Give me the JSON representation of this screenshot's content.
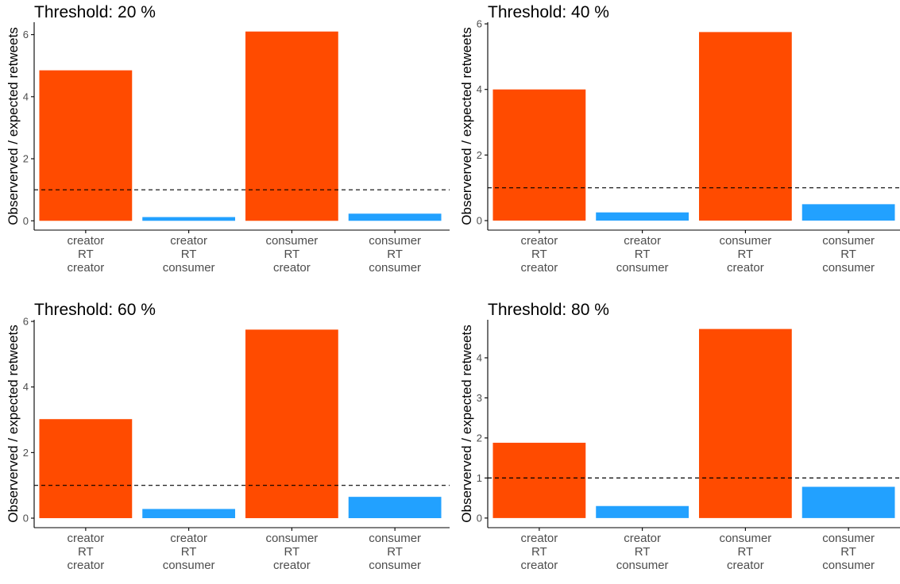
{
  "ylabel": "Observerved / expected retweets",
  "reference_line": 1,
  "colors": {
    "creator": "#ff4b00",
    "consumer": "#22a1ff"
  },
  "categories": [
    [
      "creator",
      "RT",
      "creator"
    ],
    [
      "creator",
      "RT",
      "consumer"
    ],
    [
      "consumer",
      "RT",
      "creator"
    ],
    [
      "consumer",
      "RT",
      "consumer"
    ]
  ],
  "chart_data": [
    {
      "type": "bar",
      "title": "Threshold: 20 %",
      "categories": [
        "creator RT creator",
        "creator RT consumer",
        "consumer RT creator",
        "consumer RT consumer"
      ],
      "values": [
        4.85,
        0.12,
        6.1,
        0.23
      ],
      "colors": [
        "#ff4b00",
        "#22a1ff",
        "#ff4b00",
        "#22a1ff"
      ],
      "ylim": [
        -0.3,
        6.4
      ],
      "yticks": [
        0,
        2,
        4,
        6
      ],
      "ylabel": "Observerved / expected retweets",
      "hline": 1
    },
    {
      "type": "bar",
      "title": "Threshold: 40 %",
      "categories": [
        "creator RT creator",
        "creator RT consumer",
        "consumer RT creator",
        "consumer RT consumer"
      ],
      "values": [
        4.0,
        0.25,
        5.75,
        0.5
      ],
      "colors": [
        "#ff4b00",
        "#22a1ff",
        "#ff4b00",
        "#22a1ff"
      ],
      "ylim": [
        -0.29,
        6.05
      ],
      "yticks": [
        0,
        2,
        4,
        6
      ],
      "ylabel": "Observerved / expected retweets",
      "hline": 1
    },
    {
      "type": "bar",
      "title": "Threshold: 60 %",
      "categories": [
        "creator RT creator",
        "creator RT consumer",
        "consumer RT creator",
        "consumer RT consumer"
      ],
      "values": [
        3.02,
        0.28,
        5.75,
        0.65
      ],
      "colors": [
        "#ff4b00",
        "#22a1ff",
        "#ff4b00",
        "#22a1ff"
      ],
      "ylim": [
        -0.29,
        6.05
      ],
      "yticks": [
        0,
        2,
        4,
        6
      ],
      "ylabel": "Observerved / expected retweets",
      "hline": 1
    },
    {
      "type": "bar",
      "title": "Threshold: 80 %",
      "categories": [
        "creator RT creator",
        "creator RT consumer",
        "consumer RT creator",
        "consumer RT consumer"
      ],
      "values": [
        1.88,
        0.3,
        4.72,
        0.78
      ],
      "colors": [
        "#ff4b00",
        "#22a1ff",
        "#ff4b00",
        "#22a1ff"
      ],
      "ylim": [
        -0.24,
        4.95
      ],
      "yticks": [
        0,
        1,
        2,
        3,
        4
      ],
      "ylabel": "Observerved / expected retweets",
      "hline": 1
    }
  ]
}
